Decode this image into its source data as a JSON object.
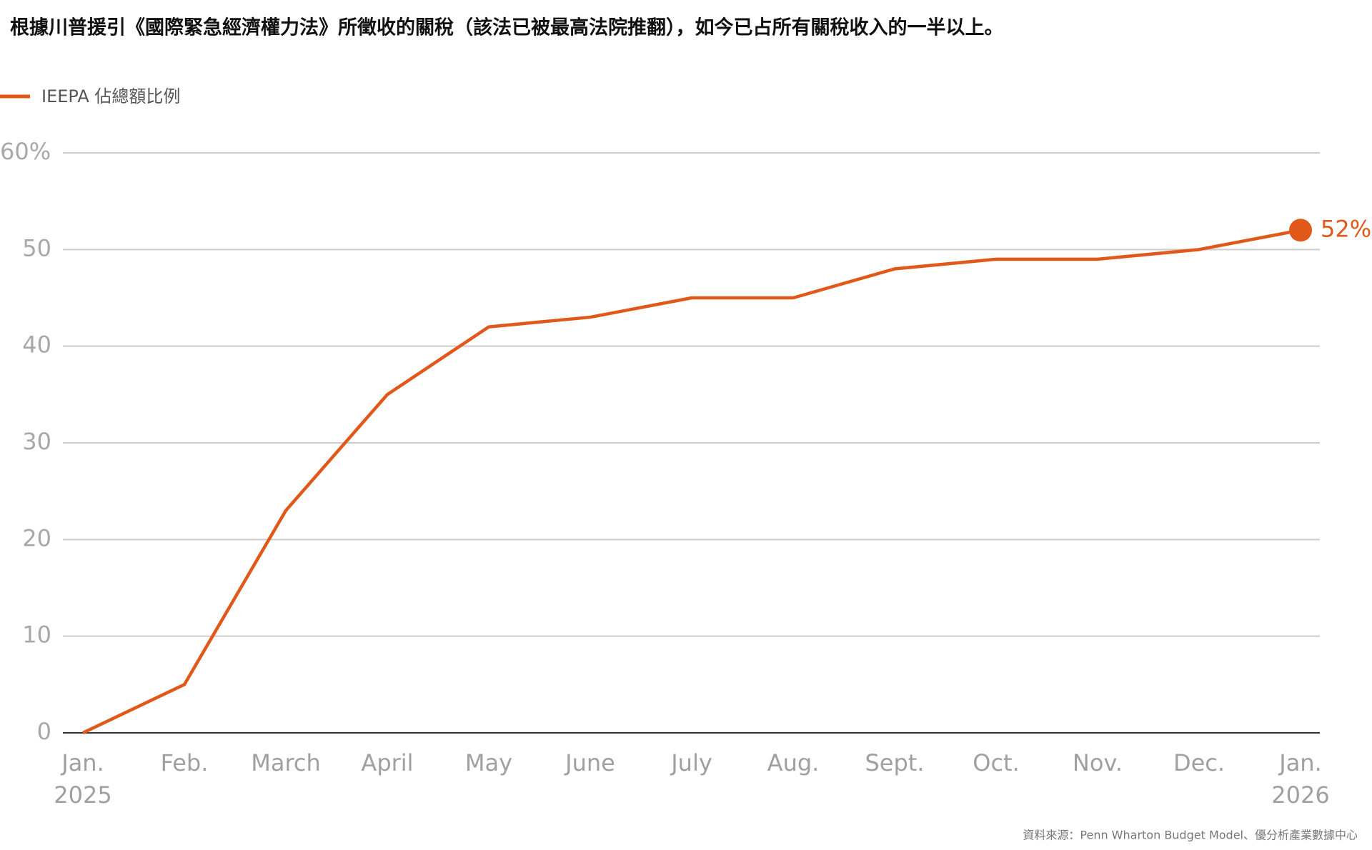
{
  "chart_data": {
    "type": "line",
    "title": "根據川普援引《國際緊急經濟權力法》所徵收的關稅（該法已被最高法院推翻），如今已占所有關稅收入的一半以上。",
    "categories": [
      "Jan.\n2025",
      "Feb.",
      "March",
      "April",
      "May",
      "June",
      "July",
      "Aug.",
      "Sept.",
      "Oct.",
      "Nov.",
      "Dec.",
      "Jan.\n2026"
    ],
    "series": [
      {
        "name": "IEEPA 佔總額比例",
        "color": "#e0581a",
        "values": [
          0,
          5,
          23,
          35,
          42,
          43,
          45,
          45,
          48,
          49,
          49,
          50,
          52
        ],
        "value_labels": [
          null,
          null,
          null,
          null,
          null,
          null,
          null,
          null,
          null,
          null,
          null,
          null,
          "52%"
        ]
      }
    ],
    "ylim": [
      0,
      60
    ],
    "yticks": [
      0,
      10,
      20,
      30,
      40,
      50,
      {
        "value": 60,
        "label": "60%"
      }
    ],
    "grid": true,
    "legend": "top-left",
    "source": "資料來源：Penn Wharton Budget Model、優分析產業數據中心"
  }
}
